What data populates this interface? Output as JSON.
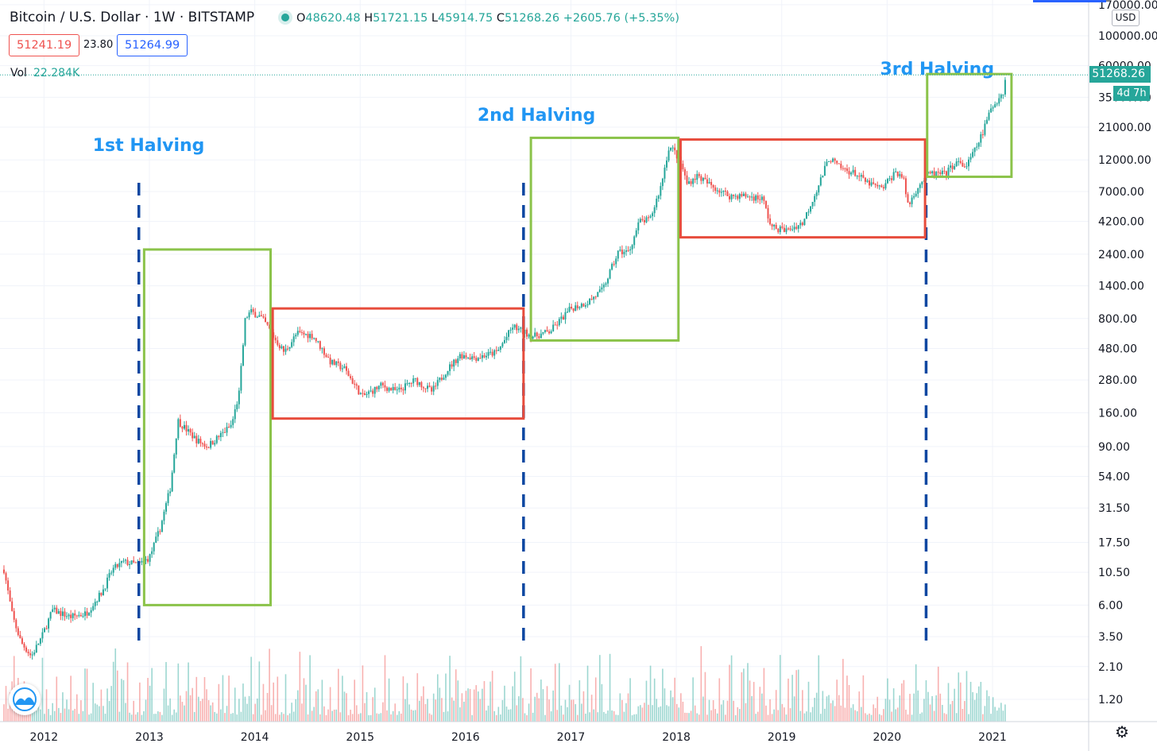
{
  "header": {
    "title": "Bitcoin / U.S. Dollar · 1W · BITSTAMP",
    "ohlc": [
      {
        "key": "O",
        "value": "48620.48"
      },
      {
        "key": "H",
        "value": "51721.15"
      },
      {
        "key": "L",
        "value": "45914.75"
      },
      {
        "key": "C",
        "value": "51268.26"
      }
    ],
    "change": "+2605.76 (+5.35%)",
    "bid": "51241.19",
    "spread": "23.80",
    "ask": "51264.99",
    "vol_label": "Vol",
    "vol_value": "22.284K"
  },
  "price_axis": {
    "currency": "USD",
    "current_price": "51268.26",
    "countdown": "4d 7h"
  },
  "colors": {
    "up": "#26a69a",
    "down": "#ef5350",
    "green_box": "#8bc34a",
    "red_box": "#e74c3c",
    "halving_line": "#0d47a1",
    "annotation_text": "#2196f3"
  },
  "chart_data": {
    "type": "candlestick",
    "title": "Bitcoin / U.S. Dollar",
    "y_scale": "log",
    "ylim": [
      1.0,
      170000
    ],
    "xlim": [
      2011.6,
      2021.8
    ],
    "y_ticks": [
      "170000.00",
      "100000.00",
      "60000.00",
      "35000.00",
      "21000.00",
      "12000.00",
      "7000.00",
      "4200.00",
      "2400.00",
      "1400.00",
      "800.00",
      "480.00",
      "280.00",
      "160.00",
      "90.00",
      "54.00",
      "31.50",
      "17.50",
      "10.50",
      "6.00",
      "3.50",
      "2.10",
      "1.20"
    ],
    "x_ticks": [
      "2012",
      "2013",
      "2014",
      "2015",
      "2016",
      "2017",
      "2018",
      "2019",
      "2020",
      "2021"
    ],
    "price_path": [
      {
        "t": 2011.62,
        "p": 11.0
      },
      {
        "t": 2011.7,
        "p": 5.0
      },
      {
        "t": 2011.78,
        "p": 3.2
      },
      {
        "t": 2011.88,
        "p": 2.5
      },
      {
        "t": 2011.98,
        "p": 3.5
      },
      {
        "t": 2012.08,
        "p": 5.5
      },
      {
        "t": 2012.25,
        "p": 4.9
      },
      {
        "t": 2012.4,
        "p": 5.2
      },
      {
        "t": 2012.55,
        "p": 7.5
      },
      {
        "t": 2012.65,
        "p": 11.0
      },
      {
        "t": 2012.75,
        "p": 12.5
      },
      {
        "t": 2012.9,
        "p": 12.0
      },
      {
        "t": 2013.0,
        "p": 13.5
      },
      {
        "t": 2013.1,
        "p": 22.0
      },
      {
        "t": 2013.2,
        "p": 45.0
      },
      {
        "t": 2013.27,
        "p": 140.0
      },
      {
        "t": 2013.35,
        "p": 120.0
      },
      {
        "t": 2013.45,
        "p": 100.0
      },
      {
        "t": 2013.55,
        "p": 90.0
      },
      {
        "t": 2013.68,
        "p": 110.0
      },
      {
        "t": 2013.78,
        "p": 130.0
      },
      {
        "t": 2013.85,
        "p": 220.0
      },
      {
        "t": 2013.91,
        "p": 800.0
      },
      {
        "t": 2013.96,
        "p": 900.0
      },
      {
        "t": 2014.05,
        "p": 830.0
      },
      {
        "t": 2014.12,
        "p": 700.0
      },
      {
        "t": 2014.2,
        "p": 550.0
      },
      {
        "t": 2014.28,
        "p": 450.0
      },
      {
        "t": 2014.4,
        "p": 620.0
      },
      {
        "t": 2014.55,
        "p": 600.0
      },
      {
        "t": 2014.72,
        "p": 380.0
      },
      {
        "t": 2014.85,
        "p": 340.0
      },
      {
        "t": 2015.02,
        "p": 210.0
      },
      {
        "t": 2015.2,
        "p": 255.0
      },
      {
        "t": 2015.35,
        "p": 230.0
      },
      {
        "t": 2015.52,
        "p": 280.0
      },
      {
        "t": 2015.68,
        "p": 230.0
      },
      {
        "t": 2015.82,
        "p": 330.0
      },
      {
        "t": 2015.95,
        "p": 430.0
      },
      {
        "t": 2016.1,
        "p": 410.0
      },
      {
        "t": 2016.3,
        "p": 450.0
      },
      {
        "t": 2016.45,
        "p": 700.0
      },
      {
        "t": 2016.52,
        "p": 650.0
      },
      {
        "t": 2016.65,
        "p": 590.0
      },
      {
        "t": 2016.8,
        "p": 640.0
      },
      {
        "t": 2017.0,
        "p": 950.0
      },
      {
        "t": 2017.15,
        "p": 1050.0
      },
      {
        "t": 2017.3,
        "p": 1300.0
      },
      {
        "t": 2017.45,
        "p": 2500.0
      },
      {
        "t": 2017.55,
        "p": 2500.0
      },
      {
        "t": 2017.65,
        "p": 4200.0
      },
      {
        "t": 2017.75,
        "p": 4300.0
      },
      {
        "t": 2017.85,
        "p": 7500.0
      },
      {
        "t": 2017.93,
        "p": 15000.0
      },
      {
        "t": 2017.98,
        "p": 14000.0
      },
      {
        "t": 2018.05,
        "p": 11000.0
      },
      {
        "t": 2018.1,
        "p": 8000.0
      },
      {
        "t": 2018.2,
        "p": 9200.0
      },
      {
        "t": 2018.3,
        "p": 8000.0
      },
      {
        "t": 2018.4,
        "p": 7200.0
      },
      {
        "t": 2018.5,
        "p": 6500.0
      },
      {
        "t": 2018.65,
        "p": 6500.0
      },
      {
        "t": 2018.82,
        "p": 6200.0
      },
      {
        "t": 2018.9,
        "p": 3800.0
      },
      {
        "t": 2019.05,
        "p": 3600.0
      },
      {
        "t": 2019.2,
        "p": 4100.0
      },
      {
        "t": 2019.35,
        "p": 7800.0
      },
      {
        "t": 2019.45,
        "p": 12500.0
      },
      {
        "t": 2019.55,
        "p": 10500.0
      },
      {
        "t": 2019.7,
        "p": 9500.0
      },
      {
        "t": 2019.8,
        "p": 8200.0
      },
      {
        "t": 2019.95,
        "p": 7300.0
      },
      {
        "t": 2020.08,
        "p": 9800.0
      },
      {
        "t": 2020.15,
        "p": 9000.0
      },
      {
        "t": 2020.2,
        "p": 5500.0
      },
      {
        "t": 2020.3,
        "p": 7800.0
      },
      {
        "t": 2020.4,
        "p": 9500.0
      },
      {
        "t": 2020.55,
        "p": 9400.0
      },
      {
        "t": 2020.65,
        "p": 11500.0
      },
      {
        "t": 2020.75,
        "p": 10700.0
      },
      {
        "t": 2020.82,
        "p": 13500.0
      },
      {
        "t": 2020.9,
        "p": 18500.0
      },
      {
        "t": 2020.98,
        "p": 28000.0
      },
      {
        "t": 2021.05,
        "p": 34000.0
      },
      {
        "t": 2021.1,
        "p": 38000.0
      },
      {
        "t": 2021.13,
        "p": 51268.26
      }
    ],
    "halvings": [
      {
        "label": "1st Halving",
        "t": 2012.9
      },
      {
        "label": "2nd Halving",
        "t": 2016.55
      },
      {
        "label": "3rd Halving",
        "t": 2020.37
      }
    ],
    "boxes": [
      {
        "kind": "green",
        "t0": 2012.95,
        "t1": 2014.15,
        "low": 6.0,
        "high": 2600.0
      },
      {
        "kind": "red",
        "t0": 2014.17,
        "t1": 2016.55,
        "low": 145.0,
        "high": 950.0
      },
      {
        "kind": "green",
        "t0": 2016.62,
        "t1": 2018.02,
        "low": 550.0,
        "high": 17500.0
      },
      {
        "kind": "red",
        "t0": 2018.04,
        "t1": 2020.36,
        "low": 3200.0,
        "high": 17000.0
      },
      {
        "kind": "green",
        "t0": 2020.38,
        "t1": 2021.18,
        "low": 9000.0,
        "high": 52000.0
      }
    ]
  }
}
